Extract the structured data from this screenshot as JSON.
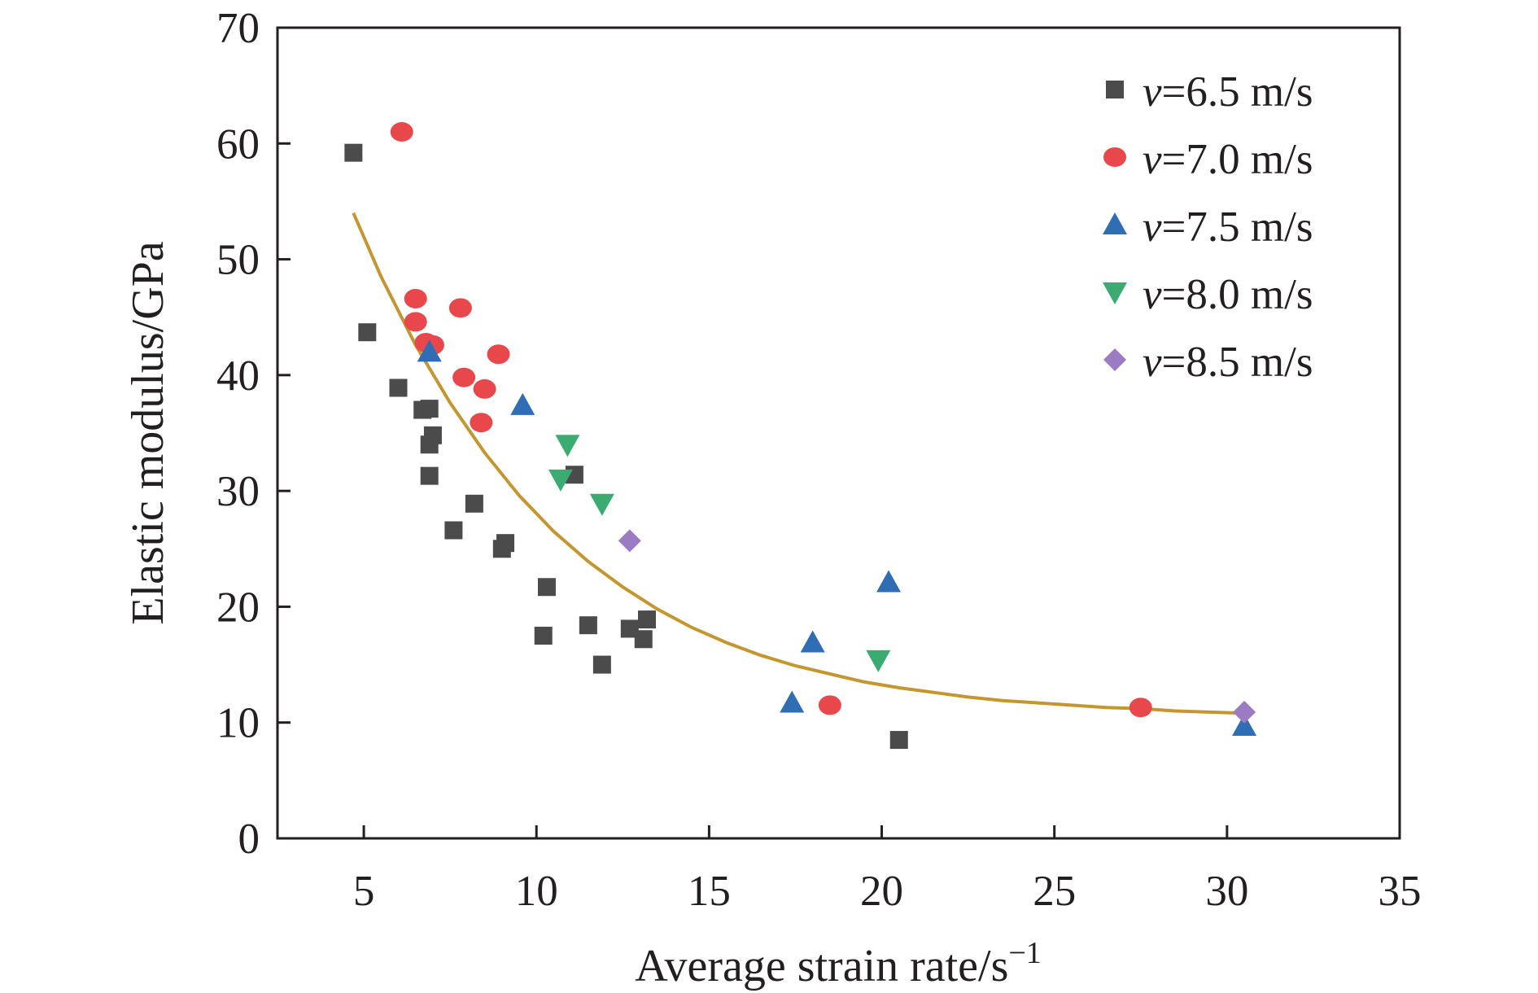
{
  "chart_data": {
    "type": "scatter",
    "xlabel": "Average strain rate/s",
    "xlabel_superscript": "−1",
    "ylabel": "Elastic modulus/GPa",
    "xlim": [
      2.5,
      35
    ],
    "ylim": [
      0,
      70
    ],
    "xticks": [
      5,
      10,
      15,
      20,
      25,
      30,
      35
    ],
    "yticks": [
      0,
      10,
      20,
      30,
      40,
      50,
      60,
      70
    ],
    "grid": false,
    "legend_position": "top-right",
    "series": [
      {
        "name": "v=6.5 m/s",
        "legend_var": "v",
        "legend_rest": "=6.5 m/s",
        "marker": "square",
        "color": "#4b4b4b",
        "points": [
          [
            4.7,
            59.2
          ],
          [
            5.1,
            43.7
          ],
          [
            6.0,
            38.9
          ],
          [
            6.7,
            37.0
          ],
          [
            6.9,
            37.1
          ],
          [
            7.0,
            34.8
          ],
          [
            6.9,
            34.0
          ],
          [
            6.9,
            31.3
          ],
          [
            7.6,
            26.6
          ],
          [
            8.2,
            28.9
          ],
          [
            9.1,
            25.5
          ],
          [
            9.0,
            25.0
          ],
          [
            10.3,
            21.7
          ],
          [
            10.2,
            17.5
          ],
          [
            11.5,
            18.4
          ],
          [
            11.9,
            15.0
          ],
          [
            12.7,
            18.1
          ],
          [
            13.2,
            18.9
          ],
          [
            13.1,
            17.2
          ],
          [
            11.1,
            31.4
          ],
          [
            20.5,
            8.5
          ]
        ]
      },
      {
        "name": "v=7.0 m/s",
        "legend_var": "v",
        "legend_rest": "=7.0 m/s",
        "marker": "circle",
        "color": "#e8474b",
        "points": [
          [
            6.1,
            61.0
          ],
          [
            6.5,
            46.6
          ],
          [
            6.5,
            44.6
          ],
          [
            6.8,
            42.8
          ],
          [
            7.0,
            42.6
          ],
          [
            7.8,
            45.8
          ],
          [
            7.9,
            39.8
          ],
          [
            8.5,
            38.8
          ],
          [
            8.4,
            35.9
          ],
          [
            8.9,
            41.8
          ],
          [
            18.5,
            11.5
          ],
          [
            27.5,
            11.3
          ]
        ]
      },
      {
        "name": "v=7.5 m/s",
        "legend_var": "v",
        "legend_rest": "=7.5 m/s",
        "marker": "triangle-up",
        "color": "#2f6eb5",
        "points": [
          [
            6.9,
            42.0
          ],
          [
            9.6,
            37.4
          ],
          [
            20.2,
            22.1
          ],
          [
            18.0,
            16.9
          ],
          [
            17.4,
            11.7
          ],
          [
            30.5,
            9.7
          ]
        ]
      },
      {
        "name": "v=8.0 m/s",
        "legend_var": "v",
        "legend_rest": "=8.0 m/s",
        "marker": "triangle-down",
        "color": "#3bab72",
        "points": [
          [
            10.9,
            34.0
          ],
          [
            10.7,
            31.0
          ],
          [
            11.9,
            28.9
          ],
          [
            19.9,
            15.4
          ]
        ]
      },
      {
        "name": "v=8.5 m/s",
        "legend_var": "v",
        "legend_rest": "=8.5 m/s",
        "marker": "diamond",
        "color": "#9b7bc2",
        "points": [
          [
            12.7,
            25.7
          ],
          [
            30.5,
            10.9
          ]
        ]
      }
    ],
    "fit_curve": {
      "color": "#c4962f",
      "points": [
        [
          4.7,
          54.0
        ],
        [
          5.5,
          48.5
        ],
        [
          6.5,
          42.6
        ],
        [
          7.5,
          37.6
        ],
        [
          8.5,
          33.3
        ],
        [
          9.5,
          29.6
        ],
        [
          10.5,
          26.5
        ],
        [
          11.5,
          23.9
        ],
        [
          12.5,
          21.7
        ],
        [
          13.5,
          19.8
        ],
        [
          14.5,
          18.2
        ],
        [
          15.5,
          16.9
        ],
        [
          16.5,
          15.8
        ],
        [
          17.5,
          14.9
        ],
        [
          18.5,
          14.2
        ],
        [
          19.5,
          13.5
        ],
        [
          20.5,
          13.0
        ],
        [
          21.5,
          12.6
        ],
        [
          22.5,
          12.2
        ],
        [
          23.5,
          11.9
        ],
        [
          24.5,
          11.7
        ],
        [
          25.5,
          11.5
        ],
        [
          26.5,
          11.3
        ],
        [
          27.5,
          11.2
        ],
        [
          28.5,
          11.0
        ],
        [
          29.5,
          10.9
        ],
        [
          30.5,
          10.8
        ]
      ]
    }
  }
}
